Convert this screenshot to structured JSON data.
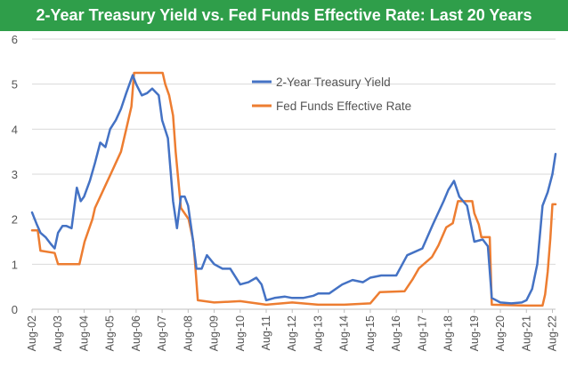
{
  "chart_data": {
    "type": "line",
    "title": "2-Year Treasury Yield vs. Fed Funds Effective Rate: Last 20 Years",
    "xlabel": "",
    "ylabel": "",
    "ylim": [
      0,
      6
    ],
    "yticks": [
      "0",
      "1",
      "2",
      "3",
      "4",
      "5",
      "6"
    ],
    "xlim": [
      2002.58,
      2022.7
    ],
    "xtick_labels": [
      "Aug-02",
      "Aug-03",
      "Aug-04",
      "Aug-05",
      "Aug-06",
      "Aug-07",
      "Aug-08",
      "Aug-09",
      "Aug-10",
      "Aug-11",
      "Aug-12",
      "Aug-13",
      "Aug-14",
      "Aug-15",
      "Aug-16",
      "Aug-17",
      "Aug-18",
      "Aug-19",
      "Aug-20",
      "Aug-21",
      "Aug-22"
    ],
    "xtick_values": [
      2002.58,
      2003.58,
      2004.58,
      2005.58,
      2006.58,
      2007.58,
      2008.58,
      2009.58,
      2010.58,
      2011.58,
      2012.58,
      2013.58,
      2014.58,
      2015.58,
      2016.58,
      2017.58,
      2018.58,
      2019.58,
      2020.58,
      2021.58,
      2022.58
    ],
    "legend_position": "top-center",
    "series": [
      {
        "name": "2-Year Treasury Yield",
        "color": "#4472c4",
        "x": [
          2002.58,
          2002.75,
          2002.9,
          2003.1,
          2003.3,
          2003.45,
          2003.58,
          2003.75,
          2003.9,
          2004.1,
          2004.3,
          2004.45,
          2004.58,
          2004.8,
          2005.0,
          2005.2,
          2005.4,
          2005.58,
          2005.8,
          2006.0,
          2006.2,
          2006.45,
          2006.58,
          2006.8,
          2007.0,
          2007.2,
          2007.45,
          2007.58,
          2007.8,
          2008.0,
          2008.15,
          2008.3,
          2008.45,
          2008.58,
          2008.75,
          2008.9,
          2009.1,
          2009.3,
          2009.58,
          2009.9,
          2010.2,
          2010.58,
          2010.9,
          2011.2,
          2011.4,
          2011.58,
          2011.9,
          2012.3,
          2012.58,
          2013.0,
          2013.4,
          2013.58,
          2014.0,
          2014.5,
          2014.9,
          2015.3,
          2015.58,
          2016.0,
          2016.58,
          2017.0,
          2017.58,
          2018.0,
          2018.4,
          2018.58,
          2018.8,
          2019.0,
          2019.3,
          2019.58,
          2019.9,
          2020.1,
          2020.25,
          2020.58,
          2021.0,
          2021.4,
          2021.58,
          2021.8,
          2022.0,
          2022.2,
          2022.4,
          2022.58,
          2022.7
        ],
        "values": [
          2.15,
          1.9,
          1.7,
          1.6,
          1.45,
          1.35,
          1.7,
          1.85,
          1.85,
          1.8,
          2.7,
          2.4,
          2.5,
          2.85,
          3.25,
          3.7,
          3.6,
          4.0,
          4.2,
          4.45,
          4.8,
          5.2,
          5.0,
          4.75,
          4.8,
          4.9,
          4.75,
          4.2,
          3.8,
          2.4,
          1.8,
          2.5,
          2.5,
          2.3,
          1.6,
          0.9,
          0.9,
          1.2,
          1.0,
          0.9,
          0.9,
          0.55,
          0.6,
          0.7,
          0.55,
          0.2,
          0.25,
          0.28,
          0.25,
          0.25,
          0.3,
          0.35,
          0.35,
          0.55,
          0.65,
          0.6,
          0.7,
          0.75,
          0.75,
          1.2,
          1.35,
          1.9,
          2.4,
          2.65,
          2.85,
          2.5,
          2.3,
          1.5,
          1.55,
          1.4,
          0.25,
          0.15,
          0.13,
          0.15,
          0.2,
          0.45,
          1.0,
          2.3,
          2.6,
          3.0,
          3.45
        ]
      },
      {
        "name": "Fed Funds Effective Rate",
        "color": "#ed7d31",
        "x": [
          2002.58,
          2002.8,
          2002.9,
          2003.45,
          2003.58,
          2004.4,
          2004.5,
          2004.6,
          2004.75,
          2004.9,
          2005.0,
          2005.2,
          2005.4,
          2005.6,
          2005.8,
          2006.0,
          2006.2,
          2006.4,
          2006.5,
          2007.6,
          2007.7,
          2007.85,
          2008.0,
          2008.1,
          2008.3,
          2008.6,
          2008.78,
          2008.85,
          2008.95,
          2009.58,
          2010.58,
          2011.58,
          2012.58,
          2013.58,
          2014.58,
          2015.58,
          2015.95,
          2016.9,
          2017.2,
          2017.45,
          2017.95,
          2018.2,
          2018.5,
          2018.75,
          2018.95,
          2019.5,
          2019.58,
          2019.75,
          2019.85,
          2020.17,
          2020.25,
          2021.58,
          2022.2,
          2022.3,
          2022.4,
          2022.5,
          2022.58,
          2022.7
        ],
        "values": [
          1.75,
          1.75,
          1.3,
          1.25,
          1.0,
          1.0,
          1.25,
          1.5,
          1.75,
          2.0,
          2.25,
          2.5,
          2.75,
          3.0,
          3.25,
          3.5,
          4.0,
          4.5,
          5.25,
          5.25,
          5.0,
          4.75,
          4.3,
          3.5,
          2.25,
          2.0,
          1.5,
          1.0,
          0.2,
          0.15,
          0.18,
          0.1,
          0.15,
          0.1,
          0.1,
          0.13,
          0.38,
          0.4,
          0.66,
          0.91,
          1.16,
          1.42,
          1.82,
          1.91,
          2.4,
          2.4,
          2.13,
          1.88,
          1.6,
          1.6,
          0.1,
          0.08,
          0.08,
          0.33,
          0.83,
          1.58,
          2.33,
          2.33
        ]
      }
    ]
  }
}
